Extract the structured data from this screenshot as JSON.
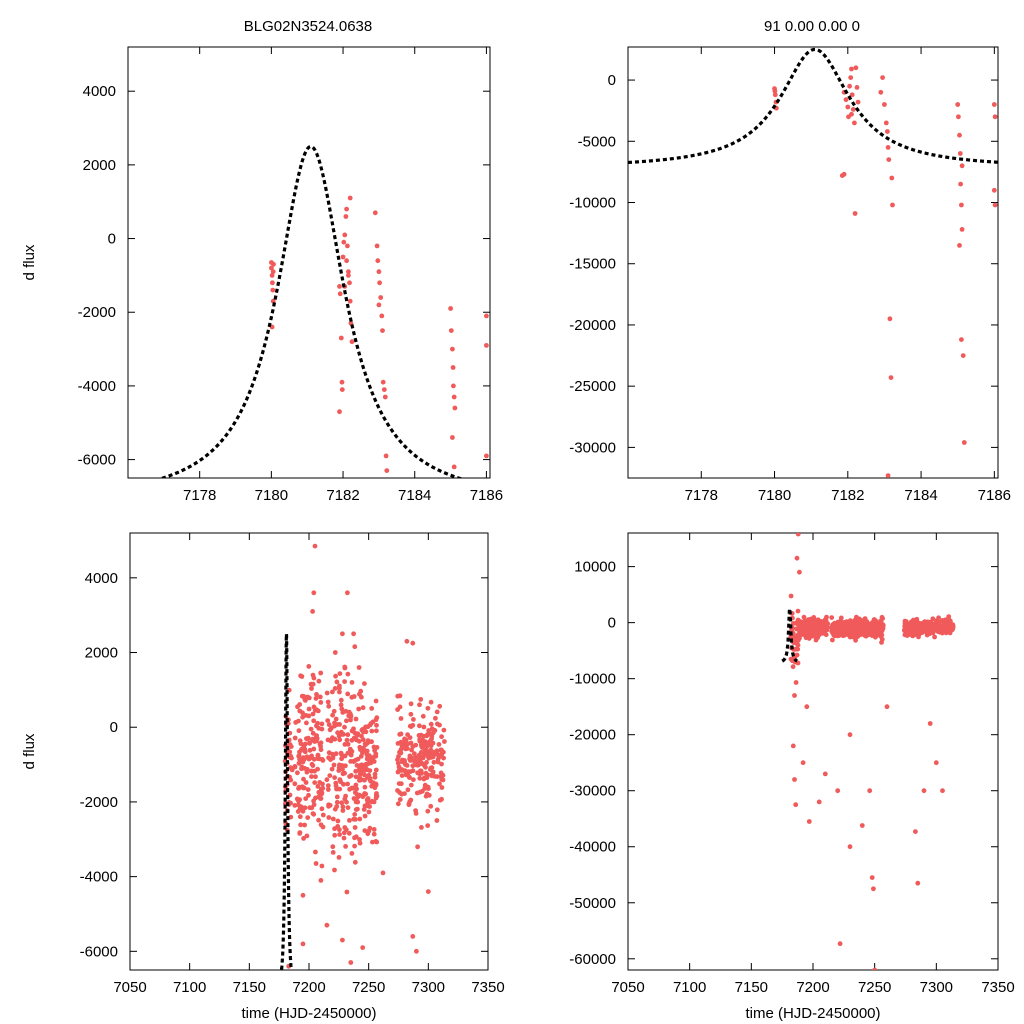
{
  "titles": {
    "left": "BLG02N3524.0638",
    "right": "91  0.00  0.00  0"
  },
  "colors": {
    "data": "#f05a5a",
    "model": "#000000"
  },
  "chart_data": [
    {
      "id": "top-left",
      "type": "scatter",
      "xlim": [
        7176,
        7186.1
      ],
      "ylim": [
        -6500,
        5200
      ],
      "xticks": [
        7178,
        7180,
        7182,
        7184,
        7186
      ],
      "yticks": [
        -6000,
        -4000,
        -2000,
        0,
        2000,
        4000
      ],
      "xlabel": "",
      "ylabel": "d flux",
      "model": {
        "t0": 7181.1,
        "peak": 2500,
        "base": -7200,
        "width": 1.15
      },
      "points": [
        [
          7180.0,
          -650
        ],
        [
          7180.0,
          -800
        ],
        [
          7180.02,
          -1000
        ],
        [
          7180.03,
          -1200
        ],
        [
          7180.04,
          -1400
        ],
        [
          7180.05,
          -900
        ],
        [
          7180.06,
          -700
        ],
        [
          7180.02,
          -2400
        ],
        [
          7180.05,
          -1700
        ],
        [
          7181.9,
          -1300
        ],
        [
          7181.92,
          -1500
        ],
        [
          7181.95,
          -2700
        ],
        [
          7181.97,
          -3900
        ],
        [
          7181.98,
          -4100
        ],
        [
          7181.9,
          -4700
        ],
        [
          7182.0,
          -500
        ],
        [
          7182.02,
          -100
        ],
        [
          7182.05,
          100
        ],
        [
          7182.08,
          600
        ],
        [
          7182.1,
          800
        ],
        [
          7182.12,
          -200
        ],
        [
          7182.15,
          -900
        ],
        [
          7182.18,
          -1200
        ],
        [
          7182.2,
          -1700
        ],
        [
          7182.22,
          -2300
        ],
        [
          7182.25,
          -2800
        ],
        [
          7182.2,
          1100
        ],
        [
          7182.15,
          -1000
        ],
        [
          7182.1,
          -600
        ],
        [
          7182.05,
          -1300
        ],
        [
          7182.9,
          700
        ],
        [
          7182.95,
          -200
        ],
        [
          7182.97,
          -600
        ],
        [
          7183.0,
          -900
        ],
        [
          7183.02,
          -1200
        ],
        [
          7183.05,
          -1600
        ],
        [
          7183.08,
          -2100
        ],
        [
          7183.1,
          -2500
        ],
        [
          7183.0,
          -1800
        ],
        [
          7183.12,
          -3900
        ],
        [
          7183.15,
          -4100
        ],
        [
          7183.18,
          -4300
        ],
        [
          7183.2,
          -5900
        ],
        [
          7183.22,
          -6300
        ],
        [
          7185.0,
          -1900
        ],
        [
          7185.02,
          -2500
        ],
        [
          7185.05,
          -3000
        ],
        [
          7185.07,
          -3500
        ],
        [
          7185.08,
          -4000
        ],
        [
          7185.1,
          -4300
        ],
        [
          7185.12,
          -4600
        ],
        [
          7185.05,
          -5400
        ],
        [
          7185.1,
          -6200
        ],
        [
          7186.0,
          -2100
        ],
        [
          7186.0,
          -2900
        ],
        [
          7186.0,
          -5900
        ]
      ]
    },
    {
      "id": "top-right",
      "type": "scatter",
      "xlim": [
        7176,
        7186.1
      ],
      "ylim": [
        -32500,
        2700
      ],
      "xticks": [
        7178,
        7180,
        7182,
        7184,
        7186
      ],
      "yticks": [
        -30000,
        -25000,
        -20000,
        -15000,
        -10000,
        -5000,
        0
      ],
      "xlabel": "",
      "ylabel": "",
      "model": {
        "t0": 7181.1,
        "peak": 2500,
        "base": -7200,
        "width": 1.15
      },
      "points": [
        [
          7180.0,
          -700
        ],
        [
          7180.02,
          -1200
        ],
        [
          7180.04,
          -1800
        ],
        [
          7180.05,
          -2300
        ],
        [
          7180.01,
          -900
        ],
        [
          7181.85,
          -7800
        ],
        [
          7181.9,
          -7700
        ],
        [
          7181.9,
          -1000
        ],
        [
          7181.95,
          -1600
        ],
        [
          7182.0,
          -2200
        ],
        [
          7182.02,
          -3000
        ],
        [
          7182.05,
          -500
        ],
        [
          7182.08,
          200
        ],
        [
          7182.1,
          900
        ],
        [
          7182.12,
          -1200
        ],
        [
          7182.15,
          -2400
        ],
        [
          7182.18,
          -3500
        ],
        [
          7182.2,
          -10900
        ],
        [
          7182.22,
          1000
        ],
        [
          7182.25,
          -600
        ],
        [
          7182.28,
          -1800
        ],
        [
          7182.1,
          -2800
        ],
        [
          7182.9,
          -1000
        ],
        [
          7182.95,
          200
        ],
        [
          7183.0,
          -2000
        ],
        [
          7183.05,
          -3500
        ],
        [
          7183.08,
          -4200
        ],
        [
          7183.1,
          -5500
        ],
        [
          7183.12,
          -6500
        ],
        [
          7183.15,
          -19500
        ],
        [
          7183.18,
          -24300
        ],
        [
          7183.2,
          -8000
        ],
        [
          7183.22,
          -10200
        ],
        [
          7183.1,
          -32300
        ],
        [
          7185.0,
          -2000
        ],
        [
          7185.02,
          -3000
        ],
        [
          7185.05,
          -4500
        ],
        [
          7185.07,
          -6000
        ],
        [
          7185.08,
          -8500
        ],
        [
          7185.1,
          -10200
        ],
        [
          7185.12,
          -12200
        ],
        [
          7185.05,
          -13500
        ],
        [
          7185.1,
          -21200
        ],
        [
          7185.15,
          -22500
        ],
        [
          7185.18,
          -29600
        ],
        [
          7185.12,
          -7000
        ],
        [
          7186.0,
          -2000
        ],
        [
          7186.02,
          -3000
        ],
        [
          7186.0,
          -9000
        ],
        [
          7186.02,
          -10200
        ]
      ]
    },
    {
      "id": "bottom-left",
      "type": "scatter",
      "xlim": [
        7050,
        7350
      ],
      "ylim": [
        -6500,
        5200
      ],
      "xticks": [
        7050,
        7100,
        7150,
        7200,
        7250,
        7300,
        7350
      ],
      "yticks": [
        -6000,
        -4000,
        -2000,
        0,
        2000,
        4000
      ],
      "xlabel": "time (HJD-2450000)",
      "ylabel": "d flux",
      "model": {
        "t0": 7181.1,
        "peak": 2500,
        "base": -7200,
        "width": 1.15
      },
      "clusters": [
        {
          "xmin": 7180,
          "xmax": 7186,
          "ymean": -900,
          "ysd": 900,
          "n": 40
        },
        {
          "xmin": 7188,
          "xmax": 7212,
          "ymean": -900,
          "ysd": 1200,
          "n": 170
        },
        {
          "xmin": 7215,
          "xmax": 7240,
          "ymean": -900,
          "ysd": 1300,
          "n": 170
        },
        {
          "xmin": 7240,
          "xmax": 7257,
          "ymean": -1100,
          "ysd": 900,
          "n": 140
        },
        {
          "xmin": 7274,
          "xmax": 7314,
          "ymean": -850,
          "ysd": 700,
          "n": 230
        }
      ],
      "outliers": [
        [
          7205,
          4850
        ],
        [
          7204,
          3600
        ],
        [
          7203,
          3100
        ],
        [
          7228,
          2500
        ],
        [
          7222,
          2000
        ],
        [
          7282,
          2300
        ],
        [
          7287,
          2250
        ],
        [
          7242,
          1600
        ],
        [
          7236,
          1200
        ],
        [
          7195,
          -4500
        ],
        [
          7195,
          -5800
        ],
        [
          7215,
          -5300
        ],
        [
          7228,
          -5700
        ],
        [
          7235,
          -6300
        ],
        [
          7245,
          -5900
        ],
        [
          7287,
          -5600
        ],
        [
          7290,
          -6000
        ],
        [
          7300,
          -4400
        ],
        [
          7210,
          -4100
        ],
        [
          7262,
          -3900
        ],
        [
          7183,
          -6400
        ]
      ]
    },
    {
      "id": "bottom-right",
      "type": "scatter",
      "xlim": [
        7050,
        7350
      ],
      "ylim": [
        -62000,
        16000
      ],
      "xticks": [
        7050,
        7100,
        7150,
        7200,
        7250,
        7300,
        7350
      ],
      "yticks": [
        -60000,
        -50000,
        -40000,
        -30000,
        -20000,
        -10000,
        0,
        10000
      ],
      "xlabel": "time (HJD-2450000)",
      "ylabel": "",
      "model": {
        "t0": 7181.1,
        "peak": 2500,
        "base": -7200,
        "width": 1.15
      },
      "clusters": [
        {
          "xmin": 7182,
          "xmax": 7188,
          "ymean": -3000,
          "ysd": 3000,
          "n": 45
        },
        {
          "xmin": 7188,
          "xmax": 7212,
          "ymean": -1000,
          "ysd": 900,
          "n": 190
        },
        {
          "xmin": 7215,
          "xmax": 7240,
          "ymean": -1000,
          "ysd": 900,
          "n": 180
        },
        {
          "xmin": 7240,
          "xmax": 7257,
          "ymean": -1100,
          "ysd": 800,
          "n": 150
        },
        {
          "xmin": 7274,
          "xmax": 7314,
          "ymean": -900,
          "ysd": 700,
          "n": 240
        }
      ],
      "outliers": [
        [
          7188,
          15800
        ],
        [
          7187,
          11500
        ],
        [
          7189,
          9000
        ],
        [
          7184,
          -22000
        ],
        [
          7185,
          -28000
        ],
        [
          7186,
          -32500
        ],
        [
          7192,
          -25000
        ],
        [
          7197,
          -35500
        ],
        [
          7205,
          -32000
        ],
        [
          7210,
          -27000
        ],
        [
          7222,
          -57300
        ],
        [
          7220,
          -30000
        ],
        [
          7230,
          -40000
        ],
        [
          7240,
          -36200
        ],
        [
          7246,
          -30000
        ],
        [
          7248,
          -45500
        ],
        [
          7249,
          -47500
        ],
        [
          7250,
          -62000
        ],
        [
          7283,
          -37300
        ],
        [
          7285,
          -46500
        ],
        [
          7290,
          -30000
        ],
        [
          7300,
          -25000
        ],
        [
          7305,
          -30000
        ],
        [
          7195,
          -15000
        ],
        [
          7185,
          -13000
        ],
        [
          7230,
          -20000
        ],
        [
          7260,
          -15000
        ],
        [
          7295,
          -18000
        ]
      ]
    }
  ]
}
